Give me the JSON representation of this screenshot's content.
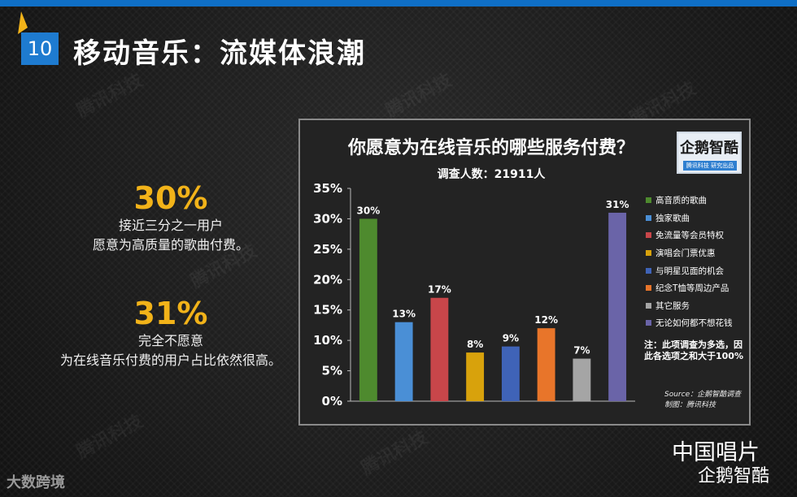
{
  "slide": {
    "number": "10",
    "title": "移动音乐：流媒体浪潮"
  },
  "watermark": "腾讯科技",
  "stats": [
    {
      "value": "30%",
      "line1": "接近三分之一用户",
      "line2": "愿意为高质量的歌曲付费。"
    },
    {
      "value": "31%",
      "line1": "完全不愿意",
      "line2": "为在线音乐付费的用户占比依然很高。"
    }
  ],
  "logo": {
    "name": "企鹅智酷",
    "sub": "腾讯科技 研究出品"
  },
  "chart_data": {
    "type": "bar",
    "title": "你愿意为在线音乐的哪些服务付费？",
    "subtitle": "调查人数：21911人",
    "categories": [
      "高音质的歌曲",
      "独家歌曲",
      "免流量等会员特权",
      "演唱会门票优惠",
      "与明星见面的机会",
      "纪念T恤等周边产品",
      "其它服务",
      "无论如何都不想花钱"
    ],
    "values": [
      30,
      13,
      17,
      8,
      9,
      12,
      7,
      31
    ],
    "value_labels": [
      "30%",
      "13%",
      "17%",
      "8%",
      "9%",
      "12%",
      "7%",
      "31%"
    ],
    "colors": [
      "#4e8a2e",
      "#4a8fd6",
      "#c8464a",
      "#d8a20c",
      "#3f63b7",
      "#e8752a",
      "#a5a5a5",
      "#6a64a8"
    ],
    "ylim": [
      0,
      35
    ],
    "yticks": [
      0,
      5,
      10,
      15,
      20,
      25,
      30,
      35
    ],
    "ytick_labels": [
      "0%",
      "5%",
      "10%",
      "15%",
      "20%",
      "25%",
      "30%",
      "35%"
    ],
    "grid": false,
    "legend_position": "right",
    "note": "注：此项调查为多选，因此各选项之和大于100%",
    "source_line1": "Source：企鹅智酷调查",
    "source_line2": "制图：腾讯科技"
  },
  "brand": {
    "bottom_left": "大数跨境",
    "bottom_right_line1": "中国唱片",
    "bottom_right_line2": "企鹅智酷"
  }
}
